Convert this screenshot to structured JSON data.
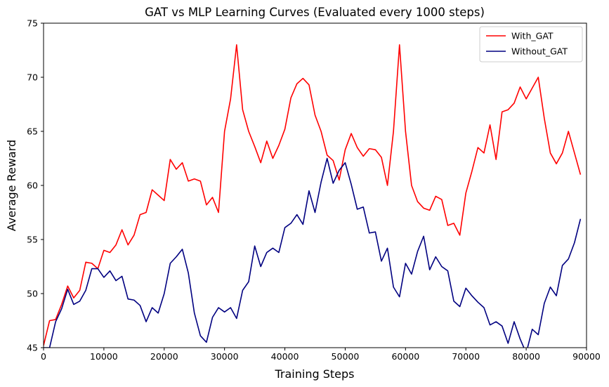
{
  "chart_data": {
    "type": "line",
    "title": "GAT vs MLP Learning Curves (Evaluated every 1000 steps)",
    "xlabel": "Training Steps",
    "ylabel": "Average Reward",
    "xlim": [
      0,
      90000
    ],
    "ylim": [
      45,
      75
    ],
    "x_ticks": [
      0,
      10000,
      20000,
      30000,
      40000,
      50000,
      60000,
      70000,
      80000,
      90000
    ],
    "y_ticks": [
      45,
      50,
      55,
      60,
      65,
      70,
      75
    ],
    "grid": false,
    "legend_position": "top-right",
    "series": [
      {
        "name": "With_GAT",
        "color": "#ff0000",
        "x": [
          0,
          1000,
          2000,
          3000,
          4000,
          5000,
          6000,
          7000,
          8000,
          9000,
          10000,
          11000,
          12000,
          13000,
          14000,
          15000,
          16000,
          17000,
          18000,
          19000,
          20000,
          21000,
          22000,
          23000,
          24000,
          25000,
          26000,
          27000,
          28000,
          29000,
          30000,
          31000,
          32000,
          33000,
          34000,
          35000,
          36000,
          37000,
          38000,
          39000,
          40000,
          41000,
          42000,
          43000,
          44000,
          45000,
          46000,
          47000,
          48000,
          49000,
          50000,
          51000,
          52000,
          53000,
          54000,
          55000,
          56000,
          57000,
          58000,
          59000,
          60000,
          61000,
          62000,
          63000,
          64000,
          65000,
          66000,
          67000,
          68000,
          69000,
          70000,
          71000,
          72000,
          73000,
          74000,
          75000,
          76000,
          77000,
          78000,
          79000,
          80000,
          81000,
          82000,
          83000,
          84000,
          85000,
          86000,
          87000,
          88000,
          89000
        ],
        "values": [
          45.2,
          47.5,
          47.6,
          49.0,
          50.7,
          49.6,
          50.3,
          52.9,
          52.8,
          52.3,
          54.0,
          53.8,
          54.5,
          55.9,
          54.5,
          55.4,
          57.3,
          57.5,
          59.6,
          59.1,
          58.6,
          62.4,
          61.5,
          62.1,
          60.4,
          60.6,
          60.4,
          58.2,
          58.9,
          57.5,
          65.0,
          68.0,
          73.0,
          67.0,
          65.0,
          63.6,
          62.1,
          64.1,
          62.5,
          63.7,
          65.2,
          68.1,
          69.4,
          69.9,
          69.3,
          66.5,
          65.0,
          62.8,
          62.3,
          60.5,
          63.3,
          64.8,
          63.5,
          62.7,
          63.4,
          63.3,
          62.6,
          60.0,
          65.0,
          73.0,
          65.0,
          60.0,
          58.5,
          57.9,
          57.7,
          59.0,
          58.7,
          56.3,
          56.5,
          55.4,
          59.3,
          61.3,
          63.5,
          63.0,
          65.6,
          62.4,
          66.8,
          67.0,
          67.6,
          69.1,
          68.0,
          69.0,
          70.0,
          66.2,
          63.0,
          62.0,
          63.0,
          65.0,
          63.0,
          61.0
        ]
      },
      {
        "name": "Without_GAT",
        "color": "#000080",
        "x": [
          0,
          1000,
          2000,
          3000,
          4000,
          5000,
          6000,
          7000,
          8000,
          9000,
          10000,
          11000,
          12000,
          13000,
          14000,
          15000,
          16000,
          17000,
          18000,
          19000,
          20000,
          21000,
          22000,
          23000,
          24000,
          25000,
          26000,
          27000,
          28000,
          29000,
          30000,
          31000,
          32000,
          33000,
          34000,
          35000,
          36000,
          37000,
          38000,
          39000,
          40000,
          41000,
          42000,
          43000,
          44000,
          45000,
          46000,
          47000,
          48000,
          49000,
          50000,
          51000,
          52000,
          53000,
          54000,
          55000,
          56000,
          57000,
          58000,
          59000,
          60000,
          61000,
          62000,
          63000,
          64000,
          65000,
          66000,
          67000,
          68000,
          69000,
          70000,
          71000,
          72000,
          73000,
          74000,
          75000,
          76000,
          77000,
          78000,
          79000,
          80000,
          81000,
          82000,
          83000,
          84000,
          85000,
          86000,
          87000,
          88000,
          89000
        ],
        "values": [
          45.0,
          45.0,
          47.4,
          48.6,
          50.4,
          49.0,
          49.3,
          50.3,
          52.3,
          52.3,
          51.5,
          52.1,
          51.2,
          51.6,
          49.5,
          49.4,
          48.9,
          47.4,
          48.7,
          48.2,
          50.0,
          52.8,
          53.4,
          54.1,
          51.9,
          48.2,
          46.1,
          45.5,
          47.8,
          48.7,
          48.3,
          48.7,
          47.7,
          50.3,
          51.1,
          54.4,
          52.5,
          53.8,
          54.2,
          53.8,
          56.1,
          56.5,
          57.3,
          56.4,
          59.5,
          57.5,
          60.3,
          62.5,
          60.2,
          61.4,
          62.1,
          60.1,
          57.8,
          58.0,
          55.6,
          55.7,
          53.0,
          54.2,
          50.6,
          49.7,
          52.8,
          51.8,
          53.9,
          55.3,
          52.2,
          53.4,
          52.5,
          52.1,
          49.3,
          48.8,
          50.5,
          49.8,
          49.2,
          48.7,
          47.1,
          47.4,
          47.0,
          45.4,
          47.4,
          45.8,
          44.5,
          46.7,
          46.2,
          49.1,
          50.6,
          49.8,
          52.6,
          53.2,
          54.7,
          56.9
        ]
      }
    ]
  }
}
